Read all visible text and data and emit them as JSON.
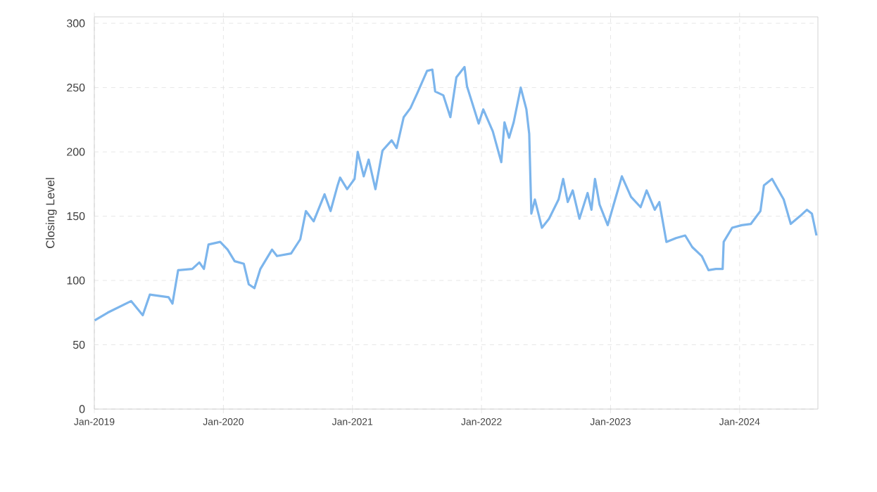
{
  "chart_data": {
    "type": "line",
    "ylabel": "Closing Level",
    "xlim": [
      "2019-01-01",
      "2024-08-10"
    ],
    "ylim": [
      0,
      305
    ],
    "xticks": [
      {
        "value": "2019-01-01",
        "label": "Jan-2019"
      },
      {
        "value": "2020-01-01",
        "label": "Jan-2020"
      },
      {
        "value": "2021-01-01",
        "label": "Jan-2021"
      },
      {
        "value": "2022-01-01",
        "label": "Jan-2022"
      },
      {
        "value": "2023-01-01",
        "label": "Jan-2023"
      },
      {
        "value": "2024-01-01",
        "label": "Jan-2024"
      }
    ],
    "yticks": [
      0,
      50,
      100,
      150,
      200,
      250,
      300
    ],
    "grid": true,
    "line_style": "solid",
    "series": [
      {
        "color": "#7cb5ec",
        "x": [
          "2019-01-02",
          "2019-02-08",
          "2019-04-15",
          "2019-05-18",
          "2019-06-07",
          "2019-07-30",
          "2019-08-10",
          "2019-08-26",
          "2019-10-05",
          "2019-10-25",
          "2019-11-07",
          "2019-11-20",
          "2019-12-23",
          "2020-01-13",
          "2020-02-02",
          "2020-02-28",
          "2020-03-13",
          "2020-03-29",
          "2020-04-15",
          "2020-05-18",
          "2020-06-01",
          "2020-07-11",
          "2020-08-06",
          "2020-08-22",
          "2020-09-13",
          "2020-10-14",
          "2020-10-31",
          "2020-11-20",
          "2020-11-27",
          "2020-12-17",
          "2021-01-07",
          "2021-01-16",
          "2021-02-02",
          "2021-02-16",
          "2021-03-07",
          "2021-03-27",
          "2021-04-22",
          "2021-05-06",
          "2021-05-26",
          "2021-06-14",
          "2021-07-04",
          "2021-07-31",
          "2021-08-15",
          "2021-08-23",
          "2021-09-15",
          "2021-10-05",
          "2021-10-22",
          "2021-11-14",
          "2021-11-21",
          "2021-12-24",
          "2022-01-06",
          "2022-02-02",
          "2022-02-26",
          "2022-03-07",
          "2022-03-20",
          "2022-04-02",
          "2022-04-22",
          "2022-05-08",
          "2022-05-16",
          "2022-05-22",
          "2022-06-01",
          "2022-06-21",
          "2022-07-11",
          "2022-08-07",
          "2022-08-20",
          "2022-09-02",
          "2022-09-16",
          "2022-10-05",
          "2022-10-28",
          "2022-11-08",
          "2022-11-18",
          "2022-12-01",
          "2022-12-24",
          "2023-01-14",
          "2023-02-02",
          "2023-02-28",
          "2023-03-27",
          "2023-04-13",
          "2023-05-06",
          "2023-05-19",
          "2023-06-08",
          "2023-07-05",
          "2023-07-31",
          "2023-08-20",
          "2023-09-16",
          "2023-10-05",
          "2023-10-26",
          "2023-11-14",
          "2023-11-17",
          "2023-12-11",
          "2024-01-07",
          "2024-02-02",
          "2024-02-29",
          "2024-03-10",
          "2024-04-02",
          "2024-05-05",
          "2024-05-25",
          "2024-06-20",
          "2024-07-10",
          "2024-07-24",
          "2024-08-06"
        ],
        "values": [
          69,
          75,
          84,
          73,
          89,
          87,
          82,
          108,
          109,
          114,
          109,
          128,
          130,
          124,
          115,
          113,
          97,
          94,
          109,
          124,
          119,
          121,
          132,
          154,
          146,
          167,
          154,
          174,
          180,
          171,
          179,
          200,
          181,
          194,
          171,
          201,
          209,
          203,
          227,
          234,
          246,
          263,
          264,
          247,
          244,
          227,
          258,
          266,
          251,
          222,
          233,
          216,
          192,
          223,
          211,
          223,
          250,
          233,
          214,
          152,
          163,
          141,
          148,
          163,
          179,
          161,
          170,
          148,
          168,
          155,
          179,
          159,
          143,
          163,
          181,
          165,
          157,
          170,
          155,
          161,
          130,
          133,
          135,
          126,
          119,
          108,
          109,
          109,
          130,
          141,
          143,
          144,
          154,
          174,
          179,
          163,
          144,
          150,
          155,
          152,
          135
        ]
      }
    ]
  }
}
